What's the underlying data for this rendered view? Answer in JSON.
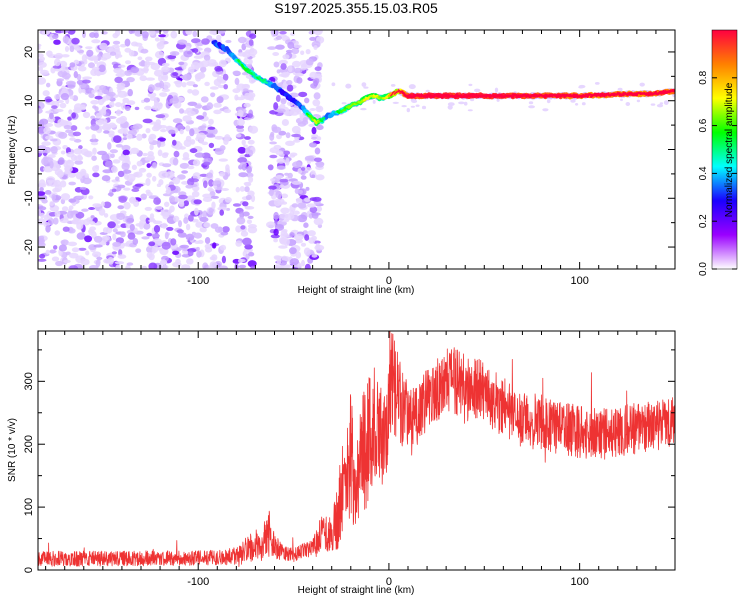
{
  "chart_data": [
    {
      "type": "heatmap",
      "title": "S197.2025.355.15.03.R05",
      "xlabel": "Height of straight line (km)",
      "ylabel": "Frequency (Hz)",
      "xlim": [
        -184,
        150
      ],
      "ylim": [
        -24.5,
        24.5
      ],
      "xticks": [
        -100,
        0,
        100
      ],
      "yticks": [
        -20,
        -10,
        0,
        10,
        20
      ],
      "grid": false,
      "colorbar": {
        "label": "Normalized spectral amplitude",
        "range": [
          0.0,
          1.0
        ],
        "ticks": [
          0.0,
          0.2,
          0.4,
          0.6,
          0.8
        ],
        "colormap": [
          "#ffffff",
          "#9a00ff",
          "#1a00ff",
          "#00ffff",
          "#00ff00",
          "#ffff00",
          "#ff8000",
          "#ff0040"
        ]
      },
      "ridge": {
        "x": [
          -92,
          -85,
          -80,
          -75,
          -70,
          -65,
          -60,
          -55,
          -50,
          -45,
          -42,
          -38,
          -35,
          -32,
          -28,
          -24,
          -20,
          -16,
          -12,
          -8,
          -4,
          0,
          5,
          10,
          20,
          40,
          60,
          80,
          100,
          120,
          140,
          150
        ],
        "y": [
          22,
          20.5,
          18.5,
          16.5,
          15,
          14,
          13,
          11.5,
          10,
          8.5,
          7,
          5.5,
          6,
          7,
          7.5,
          8,
          9,
          9.5,
          10.5,
          11,
          10.5,
          11,
          12,
          11,
          11,
          11,
          11,
          11,
          11,
          11.3,
          11.5,
          12
        ],
        "amplitude": [
          0.3,
          0.35,
          0.4,
          0.45,
          0.4,
          0.4,
          0.35,
          0.3,
          0.3,
          0.35,
          0.45,
          0.55,
          0.4,
          0.35,
          0.4,
          0.45,
          0.5,
          0.5,
          0.55,
          0.55,
          0.5,
          0.6,
          0.7,
          0.9,
          0.95,
          0.95,
          0.95,
          0.9,
          0.85,
          0.85,
          0.85,
          0.9
        ]
      }
    },
    {
      "type": "line",
      "xlabel": "Height of straight line (km)",
      "ylabel": "SNR (10 * v/v)",
      "xlim": [
        -184,
        150
      ],
      "ylim": [
        0,
        380
      ],
      "xticks": [
        -100,
        0,
        100
      ],
      "yticks": [
        0,
        100,
        200,
        300
      ],
      "grid": false,
      "series": [
        {
          "color": "#ee3333",
          "x": [
            -184,
            -160,
            -140,
            -120,
            -100,
            -90,
            -80,
            -75,
            -70,
            -67,
            -65,
            -63,
            -60,
            -55,
            -50,
            -45,
            -40,
            -35,
            -30,
            -27,
            -25,
            -22,
            -20,
            -18,
            -15,
            -10,
            -8,
            -5,
            -2,
            0,
            2,
            5,
            8,
            10,
            12,
            15,
            20,
            25,
            30,
            35,
            40,
            45,
            50,
            55,
            60,
            70,
            80,
            90,
            100,
            110,
            120,
            130,
            140,
            150
          ],
          "y": [
            18,
            18,
            18,
            19,
            19,
            20,
            22,
            30,
            42,
            30,
            55,
            60,
            38,
            25,
            25,
            30,
            35,
            55,
            60,
            80,
            120,
            140,
            200,
            110,
            180,
            200,
            240,
            200,
            230,
            240,
            300,
            270,
            255,
            250,
            240,
            255,
            270,
            285,
            300,
            300,
            285,
            290,
            280,
            270,
            260,
            240,
            235,
            225,
            220,
            215,
            220,
            225,
            230,
            235
          ],
          "amp": [
            12,
            12,
            12,
            12,
            12,
            12,
            14,
            22,
            25,
            18,
            30,
            40,
            20,
            12,
            12,
            12,
            14,
            35,
            30,
            50,
            70,
            90,
            120,
            60,
            90,
            110,
            90,
            85,
            80,
            85,
            80,
            70,
            60,
            55,
            60,
            55,
            50,
            50,
            55,
            55,
            55,
            50,
            50,
            48,
            48,
            45,
            45,
            42,
            42,
            42,
            40,
            42,
            40,
            42
          ]
        }
      ]
    }
  ]
}
